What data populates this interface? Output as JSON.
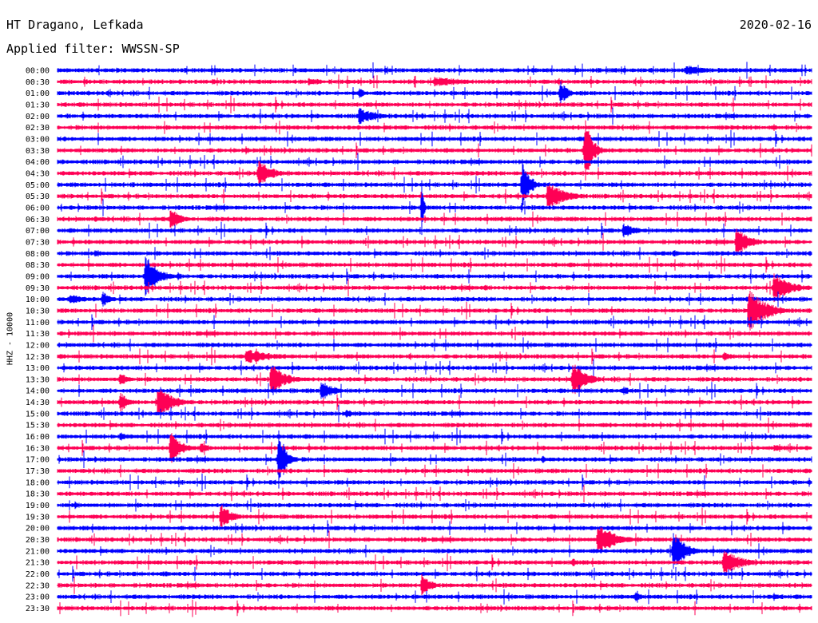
{
  "header": {
    "station": "HT Dragano, Lefkada",
    "date": "2020-02-16",
    "filter": "Applied filter: WWSSN-SP"
  },
  "chart_data": {
    "type": "line",
    "title": "HT Dragano, Lefkada",
    "subtitle": "Applied filter: WWSSN-SP",
    "ylabel": "HHZ - 10000",
    "xlabel": "",
    "rows": [
      "00:00",
      "00:30",
      "01:00",
      "01:30",
      "02:00",
      "02:30",
      "03:00",
      "03:30",
      "04:00",
      "04:30",
      "05:00",
      "05:30",
      "06:00",
      "06:30",
      "07:00",
      "07:30",
      "08:00",
      "08:30",
      "09:00",
      "09:30",
      "10:00",
      "10:30",
      "11:00",
      "11:30",
      "12:00",
      "12:30",
      "13:00",
      "13:30",
      "14:00",
      "14:30",
      "15:00",
      "15:30",
      "16:00",
      "16:30",
      "17:00",
      "17:30",
      "18:00",
      "18:30",
      "19:00",
      "19:30",
      "20:00",
      "20:30",
      "21:00",
      "21:30",
      "22:00",
      "22:30",
      "23:00",
      "23:30"
    ],
    "row_minutes": 30,
    "colors": [
      "#0000ff",
      "#ff0055"
    ],
    "events": [
      {
        "row": 0,
        "minute": 25,
        "amp": 0.5,
        "dur": 1.2
      },
      {
        "row": 1,
        "minute": 15,
        "amp": 0.5,
        "dur": 2.0
      },
      {
        "row": 1,
        "minute": 10,
        "amp": 0.4,
        "dur": 1.0
      },
      {
        "row": 2,
        "minute": 20,
        "amp": 1.2,
        "dur": 0.4
      },
      {
        "row": 2,
        "minute": 12,
        "amp": 0.6,
        "dur": 0.3
      },
      {
        "row": 4,
        "minute": 12,
        "amp": 0.8,
        "dur": 1.0
      },
      {
        "row": 4,
        "minute": 14.5,
        "amp": 0.3,
        "dur": 0.3
      },
      {
        "row": 5,
        "minute": 28.5,
        "amp": 0.4,
        "dur": 0.3
      },
      {
        "row": 5,
        "minute": 8.5,
        "amp": 0.2,
        "dur": 0.4
      },
      {
        "row": 7,
        "minute": 7.5,
        "amp": 0.4,
        "dur": 0.3
      },
      {
        "row": 7,
        "minute": 21,
        "amp": 3.0,
        "dur": 0.4
      },
      {
        "row": 9,
        "minute": 8,
        "amp": 1.2,
        "dur": 0.8
      },
      {
        "row": 10,
        "minute": 18.5,
        "amp": 2.5,
        "dur": 0.4
      },
      {
        "row": 10,
        "minute": 3,
        "amp": 0.3,
        "dur": 0.3
      },
      {
        "row": 11,
        "minute": 19.5,
        "amp": 1.4,
        "dur": 1.0
      },
      {
        "row": 12,
        "minute": 14.5,
        "amp": 3.0,
        "dur": 0.1
      },
      {
        "row": 13,
        "minute": 4.5,
        "amp": 1.2,
        "dur": 0.5
      },
      {
        "row": 13,
        "minute": 1.5,
        "amp": 0.3,
        "dur": 0.4
      },
      {
        "row": 14,
        "minute": 22.5,
        "amp": 0.7,
        "dur": 0.8
      },
      {
        "row": 15,
        "minute": 27,
        "amp": 1.3,
        "dur": 0.8
      },
      {
        "row": 16,
        "minute": 1.5,
        "amp": 0.4,
        "dur": 0.5
      },
      {
        "row": 16,
        "minute": 24.5,
        "amp": 0.4,
        "dur": 0.4
      },
      {
        "row": 18,
        "minute": 3.5,
        "amp": 2.0,
        "dur": 0.7
      },
      {
        "row": 18,
        "minute": 4.8,
        "amp": 0.4,
        "dur": 0.3
      },
      {
        "row": 19,
        "minute": 28.5,
        "amp": 1.3,
        "dur": 1.0
      },
      {
        "row": 19,
        "minute": 17,
        "amp": 0.3,
        "dur": 0.4
      },
      {
        "row": 20,
        "minute": 0.5,
        "amp": 0.5,
        "dur": 1.0
      },
      {
        "row": 20,
        "minute": 1.8,
        "amp": 0.7,
        "dur": 0.5
      },
      {
        "row": 21,
        "minute": 27.5,
        "amp": 2.0,
        "dur": 1.0
      },
      {
        "row": 25,
        "minute": 7.5,
        "amp": 0.7,
        "dur": 1.6
      },
      {
        "row": 25,
        "minute": 26.5,
        "amp": 0.5,
        "dur": 0.5
      },
      {
        "row": 25,
        "minute": 14,
        "amp": 0.3,
        "dur": 0.3
      },
      {
        "row": 27,
        "minute": 2.5,
        "amp": 0.6,
        "dur": 0.6
      },
      {
        "row": 27,
        "minute": 8.5,
        "amp": 1.5,
        "dur": 0.8
      },
      {
        "row": 27,
        "minute": 20.5,
        "amp": 1.7,
        "dur": 0.7
      },
      {
        "row": 28,
        "minute": 10.5,
        "amp": 0.9,
        "dur": 0.8
      },
      {
        "row": 28,
        "minute": 5.5,
        "amp": 0.3,
        "dur": 0.5
      },
      {
        "row": 28,
        "minute": 22.5,
        "amp": 0.4,
        "dur": 0.6
      },
      {
        "row": 29,
        "minute": 2.5,
        "amp": 1.0,
        "dur": 0.5
      },
      {
        "row": 29,
        "minute": 4,
        "amp": 1.5,
        "dur": 0.9
      },
      {
        "row": 30,
        "minute": 11.5,
        "amp": 0.4,
        "dur": 0.6
      },
      {
        "row": 32,
        "minute": 2.5,
        "amp": 0.5,
        "dur": 0.4
      },
      {
        "row": 33,
        "minute": 4.5,
        "amp": 1.5,
        "dur": 0.6
      },
      {
        "row": 33,
        "minute": 5.7,
        "amp": 0.6,
        "dur": 0.5
      },
      {
        "row": 33,
        "minute": 28.5,
        "amp": 0.3,
        "dur": 1.0
      },
      {
        "row": 34,
        "minute": 8.8,
        "amp": 2.8,
        "dur": 0.4
      },
      {
        "row": 34,
        "minute": 1.5,
        "amp": 0.3,
        "dur": 0.3
      },
      {
        "row": 34,
        "minute": 19.3,
        "amp": 0.4,
        "dur": 0.2
      },
      {
        "row": 36,
        "minute": 25.5,
        "amp": 0.3,
        "dur": 0.3
      },
      {
        "row": 38,
        "minute": 0.7,
        "amp": 0.4,
        "dur": 0.3
      },
      {
        "row": 39,
        "minute": 6.5,
        "amp": 1.2,
        "dur": 0.6
      },
      {
        "row": 41,
        "minute": 21.5,
        "amp": 1.5,
        "dur": 1.0
      },
      {
        "row": 41,
        "minute": 14.5,
        "amp": 0.3,
        "dur": 0.4
      },
      {
        "row": 42,
        "minute": 24.5,
        "amp": 1.8,
        "dur": 0.7
      },
      {
        "row": 43,
        "minute": 26.5,
        "amp": 1.2,
        "dur": 1.0
      },
      {
        "row": 43,
        "minute": 20.5,
        "amp": 0.4,
        "dur": 0.5
      },
      {
        "row": 44,
        "minute": 3,
        "amp": 0.3,
        "dur": 0.3
      },
      {
        "row": 44,
        "minute": 4.3,
        "amp": 0.3,
        "dur": 0.3
      },
      {
        "row": 45,
        "minute": 14.5,
        "amp": 1.1,
        "dur": 0.5
      },
      {
        "row": 46,
        "minute": 23,
        "amp": 0.6,
        "dur": 0.3
      },
      {
        "row": 46,
        "minute": 28.5,
        "amp": 0.4,
        "dur": 0.3
      }
    ]
  }
}
